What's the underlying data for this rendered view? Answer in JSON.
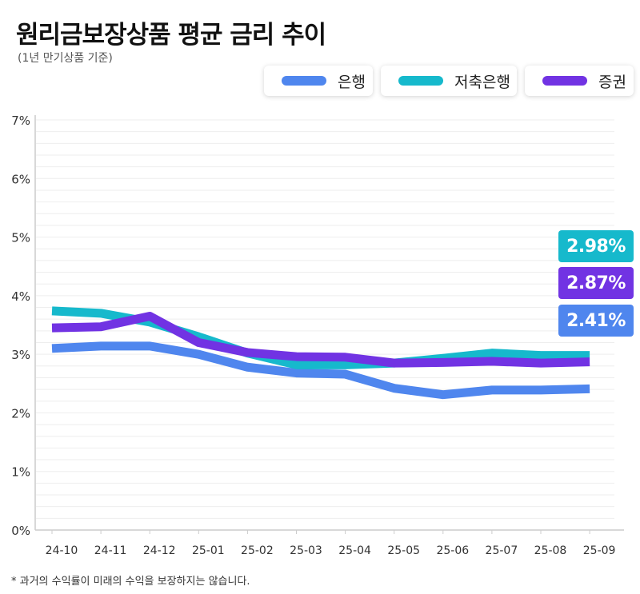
{
  "header": {
    "title": "원리금보장상품 평균 금리 추이",
    "subtitle": "(1년 만기상품 기준)"
  },
  "footnote": "* 과거의 수익률이 미래의 수익을 보장하지는 않습니다.",
  "colors": {
    "bank": "#4f86ee",
    "savings_bank": "#16b9cc",
    "securities": "#7133e3",
    "axis": "#cccccc",
    "grid": "#ececec"
  },
  "chart_data": {
    "type": "line",
    "title": "원리금보장상품 평균 금리 추이",
    "subtitle": "(1년 만기상품 기준)",
    "categories": [
      "24-10",
      "24-11",
      "24-12",
      "25-01",
      "25-02",
      "25-03",
      "25-04",
      "25-05",
      "25-06",
      "25-07",
      "25-08",
      "25-09"
    ],
    "ylim": [
      0,
      7
    ],
    "yticks": [
      "0%",
      "1%",
      "2%",
      "3%",
      "4%",
      "5%",
      "6%",
      "7%"
    ],
    "grid": true,
    "legend_position": "top-right",
    "series": [
      {
        "name": "은행",
        "color": "#4f86ee",
        "values": [
          3.1,
          3.14,
          3.14,
          3.0,
          2.78,
          2.68,
          2.66,
          2.42,
          2.31,
          2.39,
          2.39,
          2.41
        ],
        "end_label": "2.41%"
      },
      {
        "name": "저축은행",
        "color": "#16b9cc",
        "values": [
          3.74,
          3.7,
          3.55,
          3.3,
          3.02,
          2.82,
          2.82,
          2.85,
          2.93,
          3.02,
          2.98,
          2.98
        ],
        "end_label": "2.98%"
      },
      {
        "name": "증권",
        "color": "#7133e3",
        "values": [
          3.45,
          3.47,
          3.65,
          3.2,
          3.03,
          2.96,
          2.95,
          2.85,
          2.86,
          2.88,
          2.85,
          2.87
        ],
        "end_label": "2.87%"
      }
    ]
  }
}
